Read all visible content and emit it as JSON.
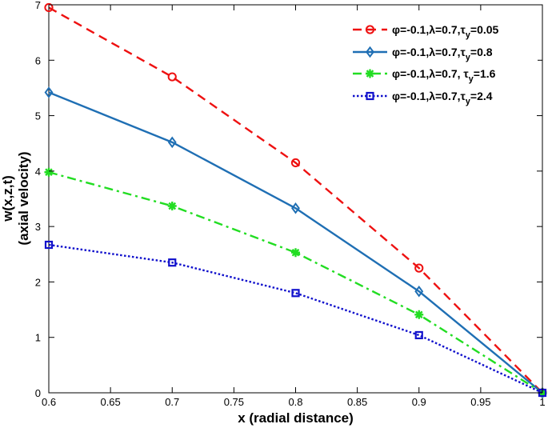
{
  "chart_data": {
    "type": "line",
    "xlabel": "x (radial distance)",
    "ylabel_line1": "w(x,z,t)",
    "ylabel_line2": "(axial velocity)",
    "xlim": [
      0.6,
      1.0
    ],
    "ylim": [
      0,
      7
    ],
    "xticks": [
      "0.6",
      "0.65",
      "0.7",
      "0.75",
      "0.8",
      "0.85",
      "0.9",
      "0.95",
      "1"
    ],
    "yticks": [
      "0",
      "1",
      "2",
      "3",
      "4",
      "5",
      "6",
      "7"
    ],
    "grid": false,
    "legend_position": "top-right",
    "x": [
      0.6,
      0.7,
      0.8,
      0.9,
      1.0
    ],
    "series": [
      {
        "name": "φ=-0.1,λ=0.7,τ_y=0.05",
        "label_main": "φ=-0.1,λ=0.7,τ",
        "label_sub": "y",
        "label_tail": "=0.05",
        "values": [
          6.95,
          5.7,
          4.15,
          2.25,
          0.0
        ],
        "color": "#ee1111",
        "dash": "dashed",
        "marker": "circle"
      },
      {
        "name": "φ=-0.1,λ=0.7,τ_y=0.8",
        "label_main": "φ=-0.1,λ=0.7,τ",
        "label_sub": "y",
        "label_tail": "=0.8",
        "values": [
          5.42,
          4.52,
          3.33,
          1.83,
          0.0
        ],
        "color": "#1f6fb4",
        "dash": "solid",
        "marker": "diamond"
      },
      {
        "name": "φ=-0.1,λ=0.7, τ_y=1.6",
        "label_main": "φ=-0.1,λ=0.7, τ",
        "label_sub": "y",
        "label_tail": "=1.6",
        "values": [
          3.98,
          3.37,
          2.53,
          1.41,
          0.0
        ],
        "color": "#22dd22",
        "dash": "dashdot",
        "marker": "asterisk"
      },
      {
        "name": "φ=-0.1,λ=0.7,τ_y=2.4",
        "label_main": "φ=-0.1,λ=0.7,τ",
        "label_sub": "y",
        "label_tail": "=2.4",
        "values": [
          2.67,
          2.35,
          1.8,
          1.04,
          0.0
        ],
        "color": "#1111cc",
        "dash": "dotted",
        "marker": "square"
      }
    ]
  }
}
